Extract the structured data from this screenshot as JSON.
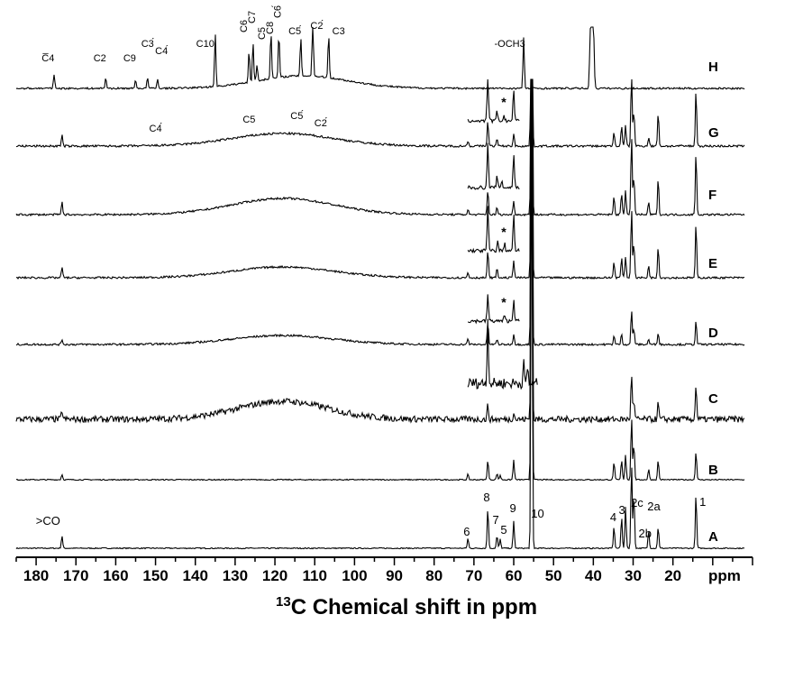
{
  "chart_data": {
    "type": "line",
    "title": "",
    "xlabel_prefix": "13",
    "xlabel_main": "C Chemical shift in ppm",
    "axis_unit": "ppm",
    "xlim": [
      185,
      0
    ],
    "x_ticks": [
      180,
      170,
      160,
      150,
      140,
      130,
      120,
      110,
      100,
      90,
      80,
      70,
      60,
      50,
      40,
      30,
      20
    ],
    "grid": false,
    "legend": "none",
    "series": [
      {
        "name": "A",
        "hump": 0,
        "humpCenter": 118,
        "humpWidth": 20,
        "noise": 0.6,
        "peaks": [
          [
            173.5,
            14
          ],
          [
            71.5,
            11
          ],
          [
            66.5,
            45
          ],
          [
            64.2,
            14
          ],
          [
            63.4,
            10
          ],
          [
            60.0,
            30
          ],
          [
            55.5,
            500
          ],
          [
            34.8,
            24
          ],
          [
            32.9,
            35
          ],
          [
            31.9,
            46
          ],
          [
            30.4,
            95
          ],
          [
            29.8,
            60
          ],
          [
            26.1,
            20
          ],
          [
            23.7,
            24
          ],
          [
            14.2,
            60
          ]
        ],
        "labels": [
          {
            "text": ">CO",
            "x": 177.0,
            "dy": 26
          },
          {
            "text": "6",
            "x": 71.8,
            "dy": 14
          },
          {
            "text": "8",
            "x": 66.8,
            "dy": 52
          },
          {
            "text": "7",
            "x": 64.5,
            "dy": 27
          },
          {
            "text": "5",
            "x": 62.5,
            "dy": 16
          },
          {
            "text": "9",
            "x": 60.2,
            "dy": 40
          },
          {
            "text": "10",
            "x": 54.0,
            "dy": 34
          },
          {
            "text": "4",
            "x": 35.0,
            "dy": 30
          },
          {
            "text": "3",
            "x": 32.8,
            "dy": 38
          },
          {
            "text": "2c",
            "x": 29.0,
            "dy": 46
          },
          {
            "text": "2a",
            "x": 24.8,
            "dy": 42
          },
          {
            "text": "2b",
            "x": 27.0,
            "dy": 12
          },
          {
            "text": "1",
            "x": 12.5,
            "dy": 47
          }
        ]
      },
      {
        "name": "B",
        "hump": 0,
        "humpCenter": 118,
        "humpWidth": 20,
        "noise": 0.6,
        "peaks": [
          [
            173.5,
            6
          ],
          [
            71.5,
            6
          ],
          [
            66.5,
            22
          ],
          [
            64.2,
            7
          ],
          [
            63.4,
            5
          ],
          [
            60.0,
            22
          ],
          [
            55.5,
            500
          ],
          [
            34.8,
            20
          ],
          [
            32.9,
            22
          ],
          [
            31.9,
            28
          ],
          [
            30.4,
            70
          ],
          [
            29.8,
            40
          ],
          [
            26.1,
            12
          ],
          [
            23.7,
            22
          ],
          [
            14.2,
            32
          ]
        ],
        "labels": []
      },
      {
        "name": "C",
        "hump": 20,
        "humpCenter": 118,
        "humpWidth": 16,
        "noise": 3.5,
        "peaks": [
          [
            173.5,
            10
          ],
          [
            66.5,
            16
          ],
          [
            60.0,
            8
          ],
          [
            55.5,
            500
          ],
          [
            30.4,
            52
          ],
          [
            29.8,
            20
          ],
          [
            23.7,
            18
          ],
          [
            14.2,
            40
          ]
        ],
        "inset": {
          "x0": 71.5,
          "x1": 54.0,
          "dy": 40,
          "noise": 6,
          "peaks": [
            [
              66.5,
              70
            ],
            [
              57.5,
              22
            ],
            [
              56.5,
              18
            ]
          ]
        },
        "labels": []
      },
      {
        "name": "D",
        "hump": 10,
        "humpCenter": 118,
        "humpWidth": 18,
        "noise": 1.1,
        "peaks": [
          [
            173.5,
            6
          ],
          [
            71.5,
            6
          ],
          [
            66.5,
            24
          ],
          [
            64.2,
            6
          ],
          [
            60.0,
            12
          ],
          [
            55.5,
            500
          ],
          [
            34.8,
            10
          ],
          [
            32.9,
            12
          ],
          [
            30.4,
            38
          ],
          [
            29.8,
            18
          ],
          [
            26.1,
            6
          ],
          [
            23.7,
            14
          ],
          [
            14.2,
            26
          ]
        ],
        "inset": {
          "x0": 71.5,
          "x1": 58.5,
          "dy": 26,
          "noise": 2,
          "peaks": [
            [
              66.5,
              30
            ],
            [
              60.0,
              25
            ],
            [
              62.3,
              6
            ]
          ]
        },
        "star": {
          "x": 62.5,
          "dy": 42
        },
        "labels": []
      },
      {
        "name": "E",
        "hump": 12,
        "humpCenter": 118,
        "humpWidth": 18,
        "noise": 1.1,
        "peaks": [
          [
            173.5,
            12
          ],
          [
            71.5,
            6
          ],
          [
            66.5,
            30
          ],
          [
            64.2,
            10
          ],
          [
            60.0,
            20
          ],
          [
            55.5,
            500
          ],
          [
            34.8,
            18
          ],
          [
            32.9,
            22
          ],
          [
            31.9,
            24
          ],
          [
            30.4,
            78
          ],
          [
            29.8,
            40
          ],
          [
            26.1,
            14
          ],
          [
            23.7,
            36
          ],
          [
            14.2,
            60
          ]
        ],
        "inset": {
          "x0": 71.5,
          "x1": 58.5,
          "dy": 30,
          "noise": 2,
          "peaks": [
            [
              66.5,
              50
            ],
            [
              64.0,
              10
            ],
            [
              60.0,
              40
            ],
            [
              62.3,
              8
            ]
          ]
        },
        "star": {
          "x": 62.5,
          "dy": 46
        },
        "labels": []
      },
      {
        "name": "F",
        "hump": 18,
        "humpCenter": 118,
        "humpWidth": 18,
        "noise": 1.1,
        "peaks": [
          [
            173.5,
            14
          ],
          [
            71.5,
            6
          ],
          [
            66.5,
            28
          ],
          [
            64.2,
            8
          ],
          [
            60.0,
            16
          ],
          [
            55.5,
            500
          ],
          [
            34.8,
            20
          ],
          [
            32.9,
            24
          ],
          [
            31.9,
            28
          ],
          [
            30.4,
            88
          ],
          [
            29.8,
            44
          ],
          [
            26.1,
            14
          ],
          [
            23.7,
            40
          ],
          [
            14.2,
            70
          ]
        ],
        "inset": {
          "x0": 71.5,
          "x1": 58.5,
          "dy": 30,
          "noise": 2,
          "peaks": [
            [
              66.5,
              50
            ],
            [
              64.2,
              12
            ],
            [
              63.0,
              8
            ],
            [
              60.0,
              38
            ]
          ]
        },
        "labels": []
      },
      {
        "name": "G",
        "hump": 14,
        "humpCenter": 118,
        "humpWidth": 18,
        "noise": 1.2,
        "peaks": [
          [
            173.5,
            12
          ],
          [
            71.5,
            6
          ],
          [
            66.5,
            28
          ],
          [
            64.2,
            8
          ],
          [
            60.0,
            14
          ],
          [
            55.5,
            500
          ],
          [
            34.8,
            16
          ],
          [
            32.9,
            22
          ],
          [
            31.9,
            24
          ],
          [
            30.4,
            84
          ],
          [
            29.8,
            40
          ],
          [
            26.1,
            10
          ],
          [
            23.7,
            38
          ],
          [
            14.2,
            62
          ]
        ],
        "inset": {
          "x0": 71.5,
          "x1": 58.5,
          "dy": 28,
          "noise": 2,
          "peaks": [
            [
              66.5,
              55
            ],
            [
              64.2,
              10
            ],
            [
              62.5,
              6
            ],
            [
              60.0,
              36
            ]
          ]
        },
        "star": {
          "x": 62.5,
          "dy": 44
        },
        "labels": [
          {
            "text": "C4́",
            "x": 150.0,
            "dy": 16
          },
          {
            "text": "C5",
            "x": 126.5,
            "dy": 26
          },
          {
            "text": "C5́",
            "x": 114.5,
            "dy": 30
          },
          {
            "text": "C2́",
            "x": 108.5,
            "dy": 22
          }
        ]
      },
      {
        "name": "H",
        "hump": 14,
        "humpCenter": 113,
        "humpWidth": 16,
        "noise": 1.0,
        "peaks": [
          [
            175.5,
            16
          ],
          [
            162.5,
            12
          ],
          [
            155.0,
            10
          ],
          [
            152.0,
            12
          ],
          [
            149.5,
            10
          ],
          [
            135.0,
            60
          ],
          [
            126.5,
            36
          ],
          [
            125.5,
            44
          ],
          [
            124.5,
            18
          ],
          [
            121.0,
            52
          ],
          [
            119.0,
            48
          ],
          [
            113.5,
            42
          ],
          [
            110.5,
            68
          ],
          [
            106.5,
            48
          ],
          [
            57.5,
            56
          ],
          [
            40.8,
            52
          ],
          [
            40.5,
            52
          ],
          [
            40.2,
            52
          ],
          [
            39.9,
            52
          ]
        ],
        "labels": [
          {
            "text": "C̅4",
            "x": 177.0,
            "dy": 30
          },
          {
            "text": "C2",
            "x": 164.0,
            "dy": 30
          },
          {
            "text": "C9",
            "x": 156.5,
            "dy": 30
          },
          {
            "text": "C3́",
            "x": 152.0,
            "dy": 46
          },
          {
            "text": "C4́",
            "x": 148.5,
            "dy": 38
          },
          {
            "text": "C10",
            "x": 137.5,
            "dy": 46
          },
          {
            "text": "C6",
            "x": 127.0,
            "dy": 62,
            "rotate": true
          },
          {
            "text": "C7",
            "x": 125.0,
            "dy": 72,
            "rotate": true
          },
          {
            "text": "C5",
            "x": 122.5,
            "dy": 54,
            "rotate": true
          },
          {
            "text": "C8",
            "x": 120.5,
            "dy": 60,
            "rotate": true
          },
          {
            "text": "C6́",
            "x": 118.5,
            "dy": 78,
            "rotate": true
          },
          {
            "text": "C5́",
            "x": 115.0,
            "dy": 60
          },
          {
            "text": "C2́",
            "x": 109.5,
            "dy": 66
          },
          {
            "text": "C3",
            "x": 104.0,
            "dy": 60
          },
          {
            "text": "-OCH3",
            "x": 61.0,
            "dy": 46
          }
        ]
      }
    ]
  }
}
